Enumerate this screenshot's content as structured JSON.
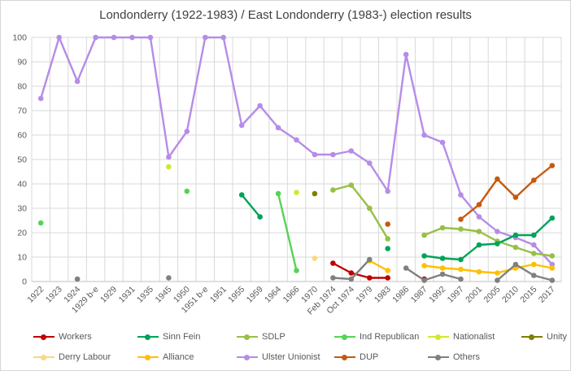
{
  "chart_data": {
    "type": "line",
    "title": "Londonderry (1922-1983) / East Londonderry (1983-) election results",
    "grid": true,
    "legend_position": "bottom",
    "x_axis": {
      "categories": [
        "1922",
        "1923",
        "1924",
        "1929 b-e",
        "1929",
        "1931",
        "1935",
        "1945",
        "1950",
        "1951 b-e",
        "1951",
        "1955",
        "1959",
        "1964",
        "1966",
        "1970",
        "Feb 1974",
        "Oct 1974",
        "1979",
        "1983",
        "1986",
        "1987",
        "1992",
        "1997",
        "2001",
        "2005",
        "2010",
        "2015",
        "2017"
      ]
    },
    "y_axis": {
      "min": 0,
      "max": 100,
      "ticks": [
        0,
        10,
        20,
        30,
        40,
        50,
        60,
        70,
        80,
        90,
        100
      ]
    },
    "series": [
      {
        "name": "Ulster Unionist",
        "color": "#B68CE8",
        "values": [
          75,
          100,
          82,
          100,
          100,
          100,
          100,
          51,
          61.5,
          100,
          100,
          64,
          72,
          63,
          58,
          52,
          52,
          53.5,
          48.5,
          37,
          93,
          60,
          57,
          35.5,
          26.5,
          20.5,
          18,
          15,
          7
        ]
      },
      {
        "name": "Ind Republican",
        "color": "#55D455",
        "values": [
          24,
          null,
          null,
          null,
          null,
          null,
          null,
          null,
          37,
          null,
          null,
          null,
          null,
          36,
          4.5,
          null,
          null,
          null,
          null,
          null,
          null,
          null,
          null,
          null,
          null,
          null,
          null,
          null,
          null
        ]
      },
      {
        "name": "Nationalist",
        "color": "#D0E830",
        "values": [
          null,
          null,
          null,
          null,
          null,
          null,
          null,
          47,
          null,
          null,
          null,
          null,
          null,
          null,
          36.5,
          null,
          null,
          null,
          null,
          null,
          null,
          null,
          null,
          null,
          null,
          null,
          null,
          null,
          null
        ]
      },
      {
        "name": "Unity",
        "color": "#7F7F00",
        "values": [
          null,
          null,
          null,
          null,
          null,
          null,
          null,
          null,
          null,
          null,
          null,
          null,
          null,
          null,
          null,
          36,
          null,
          null,
          null,
          null,
          null,
          null,
          null,
          null,
          null,
          null,
          null,
          null,
          null
        ]
      },
      {
        "name": "Derry Labour",
        "color": "#F7D97E",
        "values": [
          null,
          null,
          null,
          null,
          null,
          null,
          null,
          null,
          null,
          null,
          null,
          null,
          null,
          null,
          null,
          9.5,
          null,
          null,
          null,
          null,
          null,
          null,
          null,
          null,
          null,
          null,
          null,
          null,
          null
        ]
      },
      {
        "name": "SDLP",
        "color": "#97C045",
        "values": [
          null,
          null,
          null,
          null,
          null,
          null,
          null,
          null,
          null,
          null,
          null,
          null,
          null,
          null,
          null,
          null,
          37.5,
          39.5,
          30,
          17.5,
          null,
          19,
          22,
          21.5,
          20.5,
          16.5,
          14,
          11.5,
          10.5
        ]
      },
      {
        "name": "Sinn Fein",
        "color": "#00A35A",
        "values": [
          null,
          null,
          null,
          null,
          null,
          null,
          null,
          null,
          null,
          null,
          null,
          35.5,
          26.5,
          null,
          null,
          null,
          null,
          null,
          null,
          13.5,
          null,
          10.5,
          9.5,
          9,
          15,
          15.5,
          19,
          19,
          26
        ]
      },
      {
        "name": "DUP",
        "color": "#C55A11",
        "values": [
          null,
          null,
          null,
          null,
          null,
          null,
          null,
          null,
          null,
          null,
          null,
          null,
          null,
          null,
          null,
          null,
          null,
          null,
          null,
          23.5,
          null,
          null,
          null,
          25.5,
          31.5,
          42,
          34.5,
          41.5,
          47.5
        ]
      },
      {
        "name": "Workers",
        "color": "#C00000",
        "values": [
          null,
          null,
          null,
          null,
          null,
          null,
          null,
          null,
          null,
          null,
          null,
          null,
          null,
          null,
          null,
          null,
          7.5,
          3.5,
          1.5,
          1.5,
          null,
          1,
          null,
          null,
          null,
          null,
          null,
          null,
          null
        ]
      },
      {
        "name": "Alliance",
        "color": "#FFC000",
        "values": [
          null,
          null,
          null,
          null,
          null,
          null,
          null,
          null,
          null,
          null,
          null,
          null,
          null,
          null,
          null,
          null,
          null,
          null,
          8.5,
          4.5,
          null,
          6.5,
          5.5,
          5,
          4,
          3.5,
          5.5,
          7,
          5.5
        ]
      },
      {
        "name": "Others",
        "color": "#808080",
        "values": [
          null,
          null,
          1,
          null,
          null,
          null,
          null,
          1.5,
          null,
          null,
          null,
          null,
          null,
          null,
          null,
          null,
          1.5,
          1,
          9,
          null,
          5.5,
          0.5,
          3,
          1,
          null,
          0.5,
          7,
          2.5,
          0.5
        ]
      }
    ],
    "legend": {
      "rows": [
        [
          "Workers",
          "Sinn Fein",
          "SDLP",
          "Ind Republican",
          "Nationalist",
          "Unity"
        ],
        [
          "Derry Labour",
          "Alliance",
          "Ulster Unionist",
          "DUP",
          "Others"
        ]
      ]
    }
  }
}
